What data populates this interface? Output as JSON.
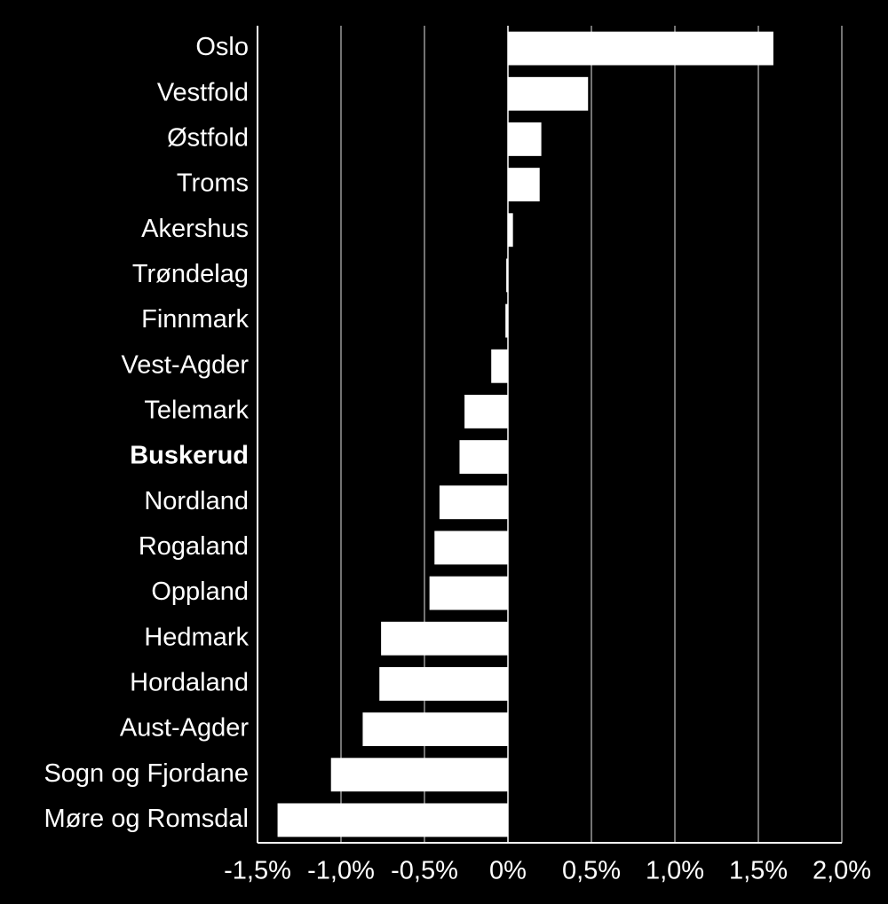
{
  "chart_data": {
    "type": "barh",
    "categories": [
      "Oslo",
      "Vestfold",
      "Østfold",
      "Troms",
      "Akershus",
      "Trøndelag",
      "Finnmark",
      "Vest-Agder",
      "Telemark",
      "Buskerud",
      "Nordland",
      "Rogaland",
      "Oppland",
      "Hedmark",
      "Hordaland",
      "Aust-Agder",
      "Sogn og Fjordane",
      "Møre og Romsdal"
    ],
    "values": [
      1.59,
      0.48,
      0.2,
      0.19,
      0.03,
      -0.01,
      -0.015,
      -0.1,
      -0.26,
      -0.29,
      -0.41,
      -0.44,
      -0.47,
      -0.76,
      -0.77,
      -0.87,
      -1.06,
      -1.38
    ],
    "color": "#ffffff",
    "bold_category_index": 9,
    "xlim": [
      -1.5,
      2.0
    ],
    "xticks": [
      {
        "value": -1.5,
        "label": "-1,5%"
      },
      {
        "value": -1.0,
        "label": "-1,0%"
      },
      {
        "value": -0.5,
        "label": "-0,5%"
      },
      {
        "value": 0,
        "label": "0%"
      },
      {
        "value": 0.5,
        "label": "0,5%"
      },
      {
        "value": 1.0,
        "label": "1,0%"
      },
      {
        "value": 1.5,
        "label": "1,5%"
      },
      {
        "value": 2.0,
        "label": "2,0%"
      }
    ],
    "grid": true
  }
}
